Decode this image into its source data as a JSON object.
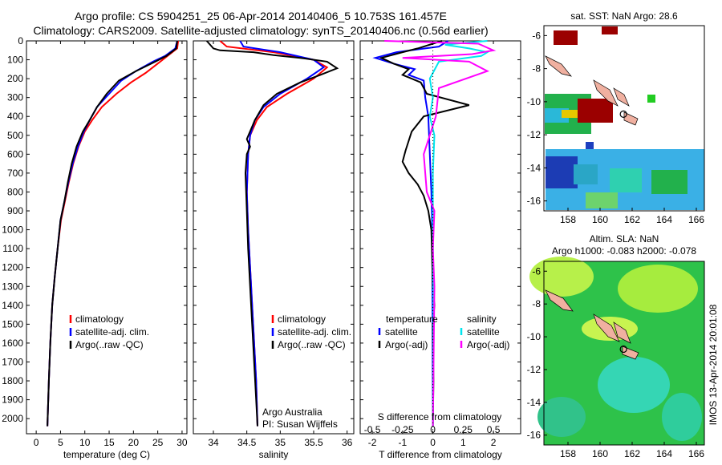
{
  "header": {
    "line1": "Argo profile: CS 5904251_25 06-Apr-2014 20140406_5 10.753S 161.457E",
    "line2": "Climatology: CARS2009. Satellite-adjusted climatology: synTS_20140406.nc (0.56d earlier)"
  },
  "colors": {
    "climatology": "#ff0000",
    "satellite": "#0000ff",
    "argo": "#000000",
    "salinity_satellite": "#00e5ee",
    "salinity_argo": "#ff00ff"
  },
  "chart_data": [
    {
      "type": "line",
      "name": "temperature-profile",
      "xlabel": "temperature (deg C)",
      "ylabel": "",
      "xlim": [
        -2,
        31
      ],
      "ylim": [
        2080,
        0
      ],
      "xticks": [
        0,
        5,
        10,
        15,
        20,
        25,
        30
      ],
      "yticks": [
        0,
        100,
        200,
        300,
        400,
        500,
        600,
        700,
        800,
        900,
        1000,
        1100,
        1200,
        1300,
        1400,
        1500,
        1600,
        1700,
        1800,
        1900,
        2000
      ],
      "legend": [
        "climatology",
        "satellite-adj. clim.",
        "Argo(..raw -QC)"
      ],
      "series": [
        {
          "name": "climatology",
          "color": "#ff0000",
          "points": [
            [
              29.2,
              0
            ],
            [
              29.0,
              40
            ],
            [
              27.0,
              80
            ],
            [
              25.0,
              120
            ],
            [
              22.5,
              170
            ],
            [
              19.5,
              220
            ],
            [
              16.5,
              280
            ],
            [
              13.5,
              350
            ],
            [
              11.5,
              420
            ],
            [
              10.0,
              480
            ],
            [
              8.7,
              560
            ],
            [
              7.6,
              650
            ],
            [
              6.7,
              750
            ],
            [
              5.9,
              850
            ],
            [
              5.1,
              950
            ],
            [
              4.4,
              1100
            ],
            [
              3.8,
              1250
            ],
            [
              3.3,
              1400
            ],
            [
              2.9,
              1600
            ],
            [
              2.6,
              1800
            ],
            [
              2.3,
              2040
            ]
          ]
        },
        {
          "name": "satellite-adj. clim.",
          "color": "#0000ff",
          "points": [
            [
              29.0,
              0
            ],
            [
              28.6,
              40
            ],
            [
              26.5,
              80
            ],
            [
              24.0,
              110
            ],
            [
              20.5,
              160
            ],
            [
              17.5,
              210
            ],
            [
              15.0,
              280
            ],
            [
              12.5,
              350
            ],
            [
              11.0,
              420
            ],
            [
              9.8,
              480
            ],
            [
              8.6,
              560
            ],
            [
              7.5,
              650
            ],
            [
              6.6,
              750
            ],
            [
              5.8,
              850
            ],
            [
              5.0,
              950
            ],
            [
              4.4,
              1100
            ],
            [
              3.8,
              1250
            ],
            [
              3.3,
              1400
            ],
            [
              2.9,
              1600
            ],
            [
              2.6,
              1800
            ],
            [
              2.3,
              2040
            ]
          ]
        },
        {
          "name": "Argo(..raw -QC)",
          "color": "#000000",
          "points": [
            [
              29.0,
              0
            ],
            [
              28.8,
              40
            ],
            [
              26.8,
              80
            ],
            [
              24.5,
              110
            ],
            [
              20.5,
              160
            ],
            [
              17.0,
              210
            ],
            [
              14.5,
              280
            ],
            [
              12.5,
              350
            ],
            [
              11.0,
              420
            ],
            [
              9.6,
              480
            ],
            [
              8.3,
              560
            ],
            [
              7.3,
              650
            ],
            [
              6.5,
              750
            ],
            [
              5.8,
              850
            ],
            [
              5.0,
              950
            ],
            [
              4.4,
              1100
            ],
            [
              3.8,
              1250
            ],
            [
              3.3,
              1400
            ],
            [
              2.9,
              1600
            ],
            [
              2.6,
              1800
            ],
            [
              2.3,
              2040
            ]
          ]
        }
      ]
    },
    {
      "type": "line",
      "name": "salinity-profile",
      "xlabel": "salinity",
      "xlim": [
        33.7,
        36.1
      ],
      "ylim": [
        2080,
        0
      ],
      "xticks": [
        34,
        34.5,
        35,
        35.5,
        36
      ],
      "legend": [
        "climatology",
        "satellite-adj. clim.",
        "Argo(..raw -QC)"
      ],
      "annotation": [
        "Argo Australia",
        "PI: Susan Wijffels"
      ],
      "series": [
        {
          "name": "climatology",
          "color": "#ff0000",
          "points": [
            [
              34.1,
              0
            ],
            [
              34.2,
              30
            ],
            [
              34.9,
              60
            ],
            [
              35.5,
              100
            ],
            [
              35.7,
              140
            ],
            [
              35.5,
              200
            ],
            [
              35.1,
              280
            ],
            [
              34.8,
              350
            ],
            [
              34.65,
              420
            ],
            [
              34.55,
              500
            ],
            [
              34.52,
              600
            ],
            [
              34.5,
              800
            ],
            [
              34.52,
              1000
            ],
            [
              34.55,
              1200
            ],
            [
              34.58,
              1400
            ],
            [
              34.61,
              1600
            ],
            [
              34.64,
              1800
            ],
            [
              34.66,
              2040
            ]
          ]
        },
        {
          "name": "satellite-adj. clim.",
          "color": "#0000ff",
          "points": [
            [
              34.4,
              0
            ],
            [
              34.45,
              30
            ],
            [
              35.0,
              60
            ],
            [
              35.5,
              100
            ],
            [
              35.65,
              140
            ],
            [
              35.4,
              200
            ],
            [
              35.0,
              280
            ],
            [
              34.75,
              350
            ],
            [
              34.62,
              420
            ],
            [
              34.55,
              500
            ],
            [
              34.52,
              600
            ],
            [
              34.5,
              800
            ],
            [
              34.52,
              1000
            ],
            [
              34.55,
              1200
            ],
            [
              34.58,
              1400
            ],
            [
              34.61,
              1600
            ],
            [
              34.64,
              1800
            ],
            [
              34.66,
              2040
            ]
          ]
        },
        {
          "name": "Argo(..raw -QC)",
          "color": "#000000",
          "points": [
            [
              33.9,
              0
            ],
            [
              34.0,
              40
            ],
            [
              34.1,
              50
            ],
            [
              34.6,
              60
            ],
            [
              34.9,
              75
            ],
            [
              35.3,
              90
            ],
            [
              35.7,
              110
            ],
            [
              35.85,
              145
            ],
            [
              35.6,
              180
            ],
            [
              35.3,
              220
            ],
            [
              34.95,
              280
            ],
            [
              34.75,
              340
            ],
            [
              34.62,
              420
            ],
            [
              34.5,
              520
            ],
            [
              34.55,
              560
            ],
            [
              34.5,
              600
            ],
            [
              34.48,
              700
            ],
            [
              34.5,
              900
            ],
            [
              34.52,
              1100
            ],
            [
              34.55,
              1300
            ],
            [
              34.58,
              1500
            ],
            [
              34.61,
              1700
            ],
            [
              34.64,
              1900
            ],
            [
              34.66,
              2040
            ]
          ]
        }
      ]
    },
    {
      "type": "line",
      "name": "difference-profile",
      "xlabel": "T difference from climatology",
      "xlabel_top": "S difference from climatology",
      "xlim": [
        -2.4,
        2.9
      ],
      "ylim": [
        2080,
        0
      ],
      "xticks": [
        -2,
        -1,
        0,
        1,
        2
      ],
      "xtick_labels": [
        "-2",
        "-1",
        "0",
        "1",
        "2"
      ],
      "secondary_xticks": [
        -0.5,
        -0.25,
        0,
        0.25,
        0.5
      ],
      "secondary_xtick_labels": [
        "-0.5",
        "-0.25",
        "0",
        "0.25",
        "0.5"
      ],
      "legend": {
        "left_header": "temperature",
        "right_header": "salinity",
        "left": [
          "satellite",
          "Argo(-adj)"
        ],
        "right": [
          "satellite",
          "Argo(-adj)"
        ]
      },
      "series": [
        {
          "name": "temperature satellite",
          "color": "#0000ff",
          "points": [
            [
              0.5,
              0
            ],
            [
              0.2,
              30
            ],
            [
              -1.2,
              60
            ],
            [
              -1.9,
              90
            ],
            [
              -1.3,
              120
            ],
            [
              -0.6,
              150
            ],
            [
              -0.8,
              180
            ],
            [
              -0.3,
              210
            ],
            [
              -0.25,
              300
            ],
            [
              -0.15,
              400
            ],
            [
              -0.1,
              600
            ],
            [
              -0.05,
              800
            ],
            [
              -0.02,
              1000
            ],
            [
              0,
              2040
            ]
          ]
        },
        {
          "name": "temperature Argo(-adj)",
          "color": "#000000",
          "points": [
            [
              0.3,
              0
            ],
            [
              -0.5,
              40
            ],
            [
              -1.0,
              60
            ],
            [
              -1.7,
              90
            ],
            [
              -1.3,
              120
            ],
            [
              -0.8,
              150
            ],
            [
              -1.0,
              180
            ],
            [
              -0.4,
              220
            ],
            [
              -0.2,
              280
            ],
            [
              1.2,
              340
            ],
            [
              -0.3,
              400
            ],
            [
              -0.7,
              480
            ],
            [
              -0.9,
              580
            ],
            [
              -1.0,
              640
            ],
            [
              -0.8,
              700
            ],
            [
              -0.5,
              760
            ],
            [
              -0.3,
              820
            ],
            [
              -0.15,
              900
            ],
            [
              -0.05,
              1000
            ],
            [
              0,
              1300
            ],
            [
              0.05,
              1400
            ],
            [
              0,
              1500
            ],
            [
              0.02,
              1800
            ],
            [
              0,
              2040
            ]
          ]
        },
        {
          "name": "salinity satellite",
          "color": "#00e5ee",
          "points": [
            [
              1.8,
              0
            ],
            [
              0.4,
              20
            ],
            [
              1.2,
              40
            ],
            [
              1.8,
              60
            ],
            [
              1.6,
              80
            ],
            [
              0.2,
              110
            ],
            [
              -0.1,
              200
            ],
            [
              0.0,
              300
            ],
            [
              -0.1,
              400
            ],
            [
              0.05,
              500
            ],
            [
              0,
              700
            ],
            [
              0,
              1000
            ],
            [
              0.02,
              1500
            ],
            [
              0,
              2040
            ]
          ]
        },
        {
          "name": "salinity Argo(-adj)",
          "color": "#ff00ff",
          "points": [
            [
              -1.6,
              0
            ],
            [
              1.5,
              15
            ],
            [
              2.0,
              50
            ],
            [
              1.3,
              70
            ],
            [
              -1.0,
              90
            ],
            [
              1.2,
              110
            ],
            [
              1.8,
              160
            ],
            [
              0.2,
              250
            ],
            [
              0.1,
              400
            ],
            [
              -0.3,
              600
            ],
            [
              -0.2,
              800
            ],
            [
              0.05,
              900
            ],
            [
              0,
              1100
            ],
            [
              0.05,
              1300
            ],
            [
              0,
              2040
            ]
          ]
        }
      ]
    },
    {
      "type": "heatmap",
      "name": "sst-map",
      "title": "sat. SST: NaN Argo: 28.6",
      "xlim": [
        156.5,
        166.5
      ],
      "ylim": [
        -16.6,
        -5.4
      ],
      "xticks": [
        158,
        160,
        162,
        164,
        166
      ],
      "yticks": [
        -6,
        -8,
        -10,
        -12,
        -14,
        -16
      ]
    },
    {
      "type": "heatmap",
      "name": "sla-map",
      "title_line1": "Altim. SLA: NaN",
      "title_line2": "Argo h1000: -0.083 h2000: -0.078",
      "xlim": [
        156.5,
        166.5
      ],
      "ylim": [
        -16.6,
        -5.4
      ],
      "xticks": [
        158,
        160,
        162,
        164,
        166
      ],
      "yticks": [
        -6,
        -8,
        -10,
        -12,
        -14,
        -16
      ],
      "argo_position": [
        161.457,
        -10.753
      ]
    }
  ],
  "footer": {
    "imos_stamp": "IMOS 13-Apr-2014 20:01:08"
  }
}
